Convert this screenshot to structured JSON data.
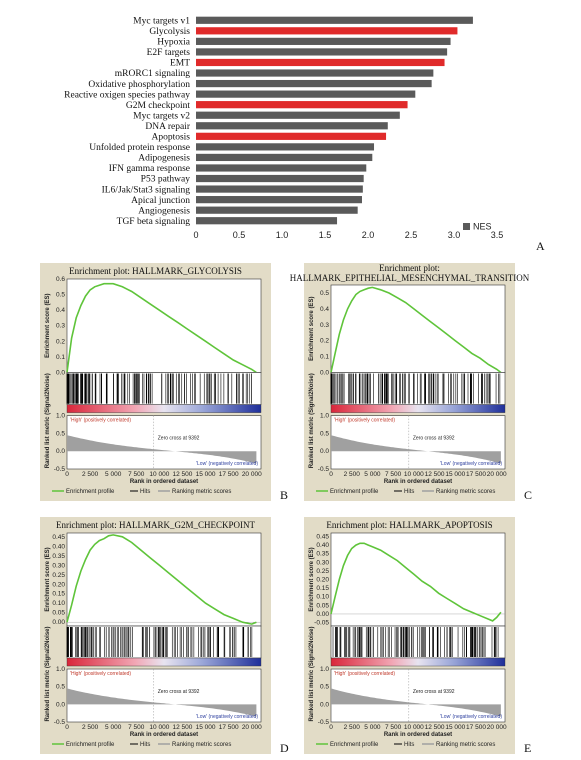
{
  "chart_data": [
    {
      "type": "bar",
      "orientation": "horizontal",
      "panel_label": "A",
      "categories": [
        "Myc targets v1",
        "Glycolysis",
        "Hypoxia",
        "E2F targets",
        "EMT",
        "mRORC1 signaling",
        "Oxidative phosphorylation",
        "Reactive oxigen species pathway",
        "G2M checkpoint",
        "Myc targets v2",
        "DNA repair",
        "Apoptosis",
        "Unfolded protein response",
        "Adipogenesis",
        "IFN gamma response",
        "P53 pathway",
        "IL6/Jak/Stat3 signaling",
        "Apical junction",
        "Angiogenesis",
        "TGF beta signaling"
      ],
      "values": [
        3.22,
        3.04,
        2.96,
        2.92,
        2.89,
        2.76,
        2.74,
        2.55,
        2.46,
        2.37,
        2.23,
        2.21,
        2.07,
        2.05,
        1.98,
        1.95,
        1.94,
        1.93,
        1.88,
        1.64
      ],
      "highlighted": [
        "Glycolysis",
        "EMT",
        "G2M checkpoint",
        "Apoptosis"
      ],
      "colors": {
        "default": "#5a5a5a",
        "highlight": "#e02a2a"
      },
      "xlim": [
        0,
        3.5
      ],
      "xticks": [
        "0",
        "0.5",
        "1.0",
        "1.5",
        "2.0",
        "2.5",
        "3.0",
        "3.5"
      ],
      "legend": {
        "entries": [
          "NES"
        ],
        "position": "bottom-right"
      }
    },
    {
      "type": "line",
      "panel_label": "B",
      "title": "Enrichment plot: HALLMARK_GLYCOLYSIS",
      "ylabel_top": "Enrichment score (ES)",
      "ylabel_bottom": "Ranked list metric (Signal2Noise)",
      "xlabel": "Rank in ordered dataset",
      "es_yticks": [
        "0.6",
        "0.5",
        "0.4",
        "0.3",
        "0.2",
        "0.1",
        "0.0"
      ],
      "es_ylim": [
        0,
        0.6
      ],
      "es_x": [
        0,
        500,
        1000,
        1500,
        2000,
        2500,
        3000,
        3500,
        4000,
        5000,
        6000,
        7000,
        8000,
        9000,
        10000,
        11000,
        12000,
        13000,
        14000,
        15000,
        16000,
        17000,
        18000,
        19000,
        20000,
        20500
      ],
      "es_y": [
        0.0,
        0.22,
        0.35,
        0.43,
        0.49,
        0.53,
        0.55,
        0.56,
        0.57,
        0.57,
        0.55,
        0.52,
        0.48,
        0.44,
        0.4,
        0.36,
        0.32,
        0.28,
        0.24,
        0.2,
        0.16,
        0.12,
        0.08,
        0.05,
        0.02,
        0.0
      ],
      "metric_yticks": [
        "1.0",
        "0.5",
        "0.0",
        "-0.5"
      ],
      "metric_ylim": [
        -0.5,
        1.0
      ],
      "xticks": [
        "0",
        "2 500",
        "5 000",
        "7 500",
        "10 000",
        "12 500",
        "15 000",
        "17 500",
        "20 000"
      ],
      "xlim": [
        0,
        21000
      ],
      "hits_density": "dense-early",
      "zero_cross": "Zero cross at 9392",
      "high_label": "'High' (positively correlated)",
      "low_label": "'Low' (negatively correlated)",
      "legend": [
        "Enrichment profile",
        "Hits",
        "Ranking metric scores"
      ],
      "colors": {
        "es": "#5fc43a",
        "hits": "#000000",
        "metric": "#a0a0a0"
      }
    },
    {
      "type": "line",
      "panel_label": "C",
      "title_line1": "Enrichment plot:",
      "title_line2": "HALLMARK_EPITHELIAL_MESENCHYMAL_TRANSITION",
      "ylabel_top": "Enrichment score (ES)",
      "ylabel_bottom": "Ranked list metric (Signal2Noise)",
      "xlabel": "Rank in ordered dataset",
      "es_yticks": [
        "0.5",
        "0.4",
        "0.3",
        "0.2",
        "0.1",
        "0.0"
      ],
      "es_ylim": [
        0,
        0.55
      ],
      "es_x": [
        0,
        500,
        1000,
        1500,
        2000,
        2500,
        3000,
        3500,
        4000,
        4500,
        5000,
        6000,
        7000,
        8000,
        9000,
        10000,
        11000,
        12000,
        13000,
        14000,
        15000,
        16000,
        17000,
        18000,
        19000,
        20000,
        20500
      ],
      "es_y": [
        0.0,
        0.12,
        0.24,
        0.33,
        0.4,
        0.45,
        0.49,
        0.51,
        0.52,
        0.53,
        0.535,
        0.52,
        0.5,
        0.47,
        0.44,
        0.4,
        0.36,
        0.32,
        0.28,
        0.24,
        0.2,
        0.16,
        0.12,
        0.09,
        0.05,
        0.02,
        0.0
      ],
      "metric_yticks": [
        "1.0",
        "0.5",
        "0.0",
        "-0.5"
      ],
      "metric_ylim": [
        -0.5,
        1.0
      ],
      "xticks": [
        "0",
        "2 500",
        "5 000",
        "7 500",
        "10 000",
        "12 500",
        "15 000",
        "17 500",
        "20 000"
      ],
      "xlim": [
        0,
        21000
      ],
      "hits_density": "dense-early",
      "zero_cross": "Zero cross at 9392",
      "high_label": "'High' (positively correlated)",
      "low_label": "'Low' (negatively correlated)",
      "legend": [
        "Enrichment profile",
        "Hits",
        "Ranking metric scores"
      ],
      "colors": {
        "es": "#5fc43a",
        "hits": "#000000",
        "metric": "#a0a0a0"
      }
    },
    {
      "type": "line",
      "panel_label": "D",
      "title": "Enrichment plot: HALLMARK_G2M_CHECKPOINT",
      "ylabel_top": "Enrichment score (ES)",
      "ylabel_bottom": "Ranked list metric (Signal2Noise)",
      "xlabel": "Rank in ordered dataset",
      "es_yticks": [
        "0.45",
        "0.40",
        "0.35",
        "0.30",
        "0.25",
        "0.20",
        "0.15",
        "0.10",
        "0.05",
        "0.00"
      ],
      "es_ylim": [
        -0.02,
        0.47
      ],
      "es_x": [
        0,
        500,
        1000,
        1500,
        2000,
        2500,
        3000,
        3500,
        4000,
        4500,
        5000,
        6000,
        7000,
        8000,
        9000,
        10000,
        11000,
        12000,
        13000,
        14000,
        15000,
        16000,
        17000,
        18000,
        19000,
        20000,
        20500
      ],
      "es_y": [
        0.0,
        0.09,
        0.19,
        0.27,
        0.33,
        0.38,
        0.41,
        0.43,
        0.44,
        0.455,
        0.46,
        0.45,
        0.42,
        0.38,
        0.34,
        0.3,
        0.26,
        0.22,
        0.18,
        0.14,
        0.1,
        0.07,
        0.04,
        0.02,
        0.0,
        -0.01,
        0.0
      ],
      "metric_yticks": [
        "1.0",
        "0.5",
        "0.0",
        "-0.5"
      ],
      "metric_ylim": [
        -0.5,
        1.0
      ],
      "xticks": [
        "0",
        "2 500",
        "5 000",
        "7 500",
        "10 000",
        "12 500",
        "15 000",
        "17 500",
        "20 000"
      ],
      "xlim": [
        0,
        21000
      ],
      "hits_density": "dense-early",
      "zero_cross": "Zero cross at 9392",
      "high_label": "'High' (positively correlated)",
      "low_label": "'Low' (negatively correlated)",
      "legend": [
        "Enrichment profile",
        "Hits",
        "Ranking metric scores"
      ],
      "colors": {
        "es": "#5fc43a",
        "hits": "#000000",
        "metric": "#a0a0a0"
      }
    },
    {
      "type": "line",
      "panel_label": "E",
      "title": "Enrichment plot: HALLMARK_APOPTOSIS",
      "ylabel_top": "Enrichment score (ES)",
      "ylabel_bottom": "Ranked list metric (Signal2Noise)",
      "xlabel": "Rank in ordered dataset",
      "es_yticks": [
        "0.45",
        "0.40",
        "0.35",
        "0.30",
        "0.25",
        "0.20",
        "0.15",
        "0.10",
        "0.05",
        "0.00",
        "-0.05"
      ],
      "es_ylim": [
        -0.07,
        0.47
      ],
      "es_x": [
        0,
        500,
        1000,
        1500,
        2000,
        2500,
        3000,
        3500,
        4000,
        4500,
        5000,
        6000,
        7000,
        8000,
        9000,
        10000,
        11000,
        12000,
        13000,
        14000,
        15000,
        16000,
        17000,
        18000,
        19000,
        19500,
        20000,
        20500
      ],
      "es_y": [
        0.0,
        0.1,
        0.2,
        0.28,
        0.34,
        0.38,
        0.4,
        0.41,
        0.41,
        0.4,
        0.39,
        0.37,
        0.34,
        0.31,
        0.27,
        0.23,
        0.19,
        0.16,
        0.12,
        0.09,
        0.06,
        0.03,
        0.01,
        -0.01,
        -0.03,
        -0.04,
        -0.02,
        0.01
      ],
      "metric_yticks": [
        "1.0",
        "0.5",
        "0.0",
        "-0.5"
      ],
      "metric_ylim": [
        -0.5,
        1.0
      ],
      "xticks": [
        "0",
        "2 500",
        "5 000",
        "7 500",
        "10 000",
        "12 500",
        "15 000",
        "17 500",
        "20 000"
      ],
      "xlim": [
        0,
        21000
      ],
      "hits_density": "uniform",
      "zero_cross": "Zero cross at 9392",
      "high_label": "'High' (positively correlated)",
      "low_label": "'Low' (negatively correlated)",
      "legend": [
        "Enrichment profile",
        "Hits",
        "Ranking metric scores"
      ],
      "colors": {
        "es": "#5fc43a",
        "hits": "#000000",
        "metric": "#a0a0a0"
      }
    }
  ]
}
